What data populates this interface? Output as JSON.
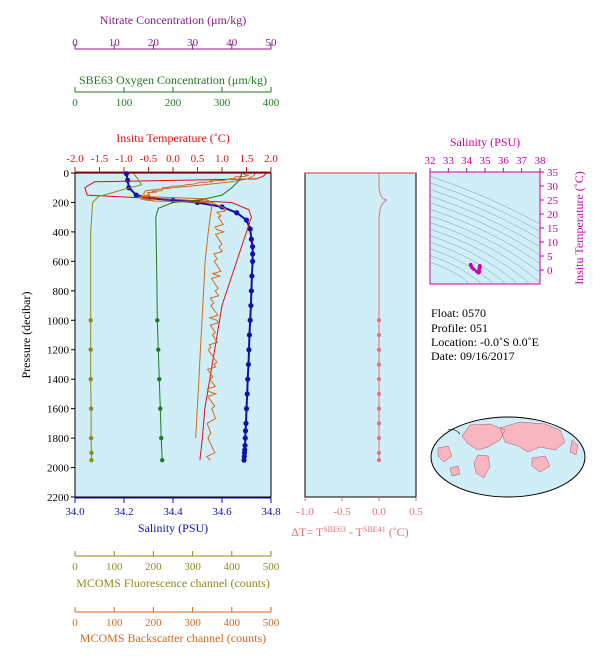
{
  "colors": {
    "nitrate": "#8b1a8b",
    "oxygen": "#1f7a1f",
    "temperature": "#dd1111",
    "salinity": "#1111aa",
    "fluorescence": "#8c8c1a",
    "backscatter": "#d2691e",
    "delta_t": "#e0707a",
    "ts": "#cc00aa",
    "plot_bg": "#cfeef8",
    "map_land": "#f7b6c0"
  },
  "texts": {
    "pressure_label": "Pressure (decibar)",
    "delta_t_label": "ΔT= T",
    "delta_t_sup1": "SBE63",
    "delta_t_mid": " - T",
    "delta_t_sup2": "SBE41",
    "delta_t_unit": " (˚C)"
  },
  "info": {
    "float": "Float:  0570",
    "profile": "Profile:  051",
    "location": "Location:  -0.0˚S   0.0˚E",
    "date": "Date:  09/16/2017"
  },
  "chart_data": [
    {
      "id": "profile",
      "type": "line",
      "ylabel": "Pressure (decibar)",
      "ylim": [
        2200,
        0
      ],
      "y_ticks": [
        0,
        200,
        400,
        600,
        800,
        1000,
        1200,
        1400,
        1600,
        1800,
        2000,
        2200
      ],
      "axes": {
        "nitrate": {
          "label": "Nitrate Concentration (μm/kg)",
          "lim": [
            0,
            50
          ],
          "ticks": [
            0,
            10,
            20,
            30,
            40,
            50
          ]
        },
        "oxygen": {
          "label": "SBE63 Oxygen Concentration (μm/kg)",
          "lim": [
            0,
            400
          ],
          "ticks": [
            0,
            100,
            200,
            300,
            400
          ]
        },
        "temperature": {
          "label": "Insitu Temperature (˚C)",
          "lim": [
            -2.0,
            2.0
          ],
          "ticks": [
            "-2.0",
            "-1.5",
            "-1.0",
            "-0.5",
            "0.0",
            "0.5",
            "1.0",
            "1.5",
            "2.0"
          ]
        },
        "salinity": {
          "label": "Salinity (PSU)",
          "lim": [
            34.0,
            34.8
          ],
          "ticks": [
            "34.0",
            "34.2",
            "34.4",
            "34.6",
            "34.8"
          ]
        },
        "fluorescence": {
          "label": "MCOMS Fluorescence channel (counts)",
          "lim": [
            0,
            500
          ],
          "ticks": [
            0,
            100,
            200,
            300,
            400,
            500
          ]
        },
        "backscatter": {
          "label": "MCOMS Backscatter channel (counts)",
          "lim": [
            0,
            500
          ],
          "ticks": [
            0,
            100,
            200,
            300,
            400,
            500
          ]
        }
      },
      "series": [
        {
          "key": "salinity",
          "style": "line+points",
          "x": [
            34.21,
            34.215,
            34.22,
            34.25,
            34.3,
            34.4,
            34.5,
            34.6,
            34.66,
            34.7,
            34.715,
            34.72,
            34.725,
            34.725,
            34.725,
            34.722,
            34.72,
            34.718,
            34.715,
            34.712,
            34.71,
            34.708,
            34.705,
            34.703,
            34.7,
            34.698,
            34.696,
            34.695,
            34.694,
            34.693,
            34.692,
            34.691,
            34.69
          ],
          "y": [
            5,
            50,
            100,
            150,
            170,
            185,
            200,
            230,
            270,
            320,
            380,
            450,
            500,
            550,
            600,
            700,
            800,
            900,
            1000,
            1100,
            1200,
            1300,
            1400,
            1500,
            1600,
            1700,
            1750,
            1800,
            1850,
            1880,
            1900,
            1925,
            1950
          ]
        },
        {
          "key": "temperature",
          "style": "line",
          "x": [
            1.9,
            1.85,
            1.7,
            0.0,
            -1.6,
            -1.8,
            -1.75,
            1.2,
            1.55,
            1.6,
            1.55,
            1.5,
            1.4,
            1.3,
            1.2,
            1.1,
            1.0,
            0.95,
            0.9,
            0.85,
            0.8,
            0.75,
            0.7,
            0.65,
            0.6,
            0.55
          ],
          "y": [
            5,
            20,
            40,
            50,
            60,
            100,
            150,
            200,
            250,
            300,
            350,
            400,
            500,
            600,
            700,
            800,
            900,
            1000,
            1100,
            1200,
            1300,
            1400,
            1500,
            1600,
            1800,
            1950
          ]
        },
        {
          "key": "backscatter",
          "style": "noisy",
          "x": [
            440,
            430,
            400,
            340,
            280,
            230,
            200,
            180,
            175,
            180,
            200,
            360,
            375,
            370,
            368,
            365,
            362,
            360,
            358,
            356,
            355,
            353,
            351,
            350,
            349,
            348,
            347,
            346,
            345
          ],
          "y": [
            5,
            20,
            40,
            60,
            80,
            100,
            130,
            150,
            170,
            180,
            190,
            200,
            250,
            300,
            400,
            500,
            600,
            700,
            800,
            900,
            1000,
            1100,
            1200,
            1300,
            1400,
            1500,
            1600,
            1800,
            1950
          ]
        },
        {
          "key": "backscatter",
          "style": "line",
          "x": [
            460,
            455,
            440,
            400,
            330,
            250,
            180,
            175,
            178,
            330,
            350,
            345,
            340,
            336,
            332,
            328,
            324,
            320,
            316,
            312,
            308
          ],
          "y": [
            5,
            20,
            40,
            60,
            80,
            100,
            120,
            140,
            160,
            175,
            200,
            300,
            400,
            500,
            600,
            800,
            1000,
            1200,
            1400,
            1600,
            1800
          ]
        },
        {
          "key": "oxygen",
          "style": "line+points",
          "x": [
            340,
            335,
            320,
            300,
            260,
            200,
            170,
            165,
            166,
            167,
            168,
            170,
            172,
            174,
            176,
            178
          ],
          "y": [
            5,
            50,
            100,
            150,
            180,
            200,
            240,
            300,
            500,
            700,
            1000,
            1200,
            1400,
            1600,
            1800,
            1950
          ]
        },
        {
          "key": "fluorescence",
          "style": "line+points",
          "x": [
            150,
            160,
            170,
            140,
            100,
            60,
            45,
            40,
            40,
            40,
            40,
            40,
            41,
            41,
            42,
            42
          ],
          "y": [
            5,
            40,
            80,
            100,
            130,
            160,
            200,
            400,
            700,
            1000,
            1200,
            1400,
            1600,
            1800,
            1900,
            1950
          ]
        }
      ]
    },
    {
      "id": "delta_t",
      "type": "line",
      "xlabel": "ΔT= TSBE63 - TSBE41 (˚C)",
      "xlim": [
        -1.0,
        0.5
      ],
      "x_ticks": [
        "-1.0",
        "-0.5",
        "0.0",
        "0.5"
      ],
      "ylim": [
        2200,
        0
      ],
      "series": [
        {
          "x": [
            0.0,
            0.0,
            0.02,
            0.05,
            0.1,
            0.06,
            0.02,
            0.0,
            0.0,
            0.0,
            0.0
          ],
          "y": [
            5,
            100,
            150,
            170,
            185,
            200,
            230,
            300,
            600,
            1000,
            1950
          ]
        }
      ]
    },
    {
      "id": "ts",
      "type": "scatter",
      "xlabel": "Salinity (PSU)",
      "ylabel": "Insitu Temperature (˚C)",
      "xlim": [
        32,
        38
      ],
      "ylim": [
        -5,
        35
      ],
      "x_ticks": [
        32,
        33,
        34,
        35,
        36,
        37,
        38
      ],
      "y_ticks": [
        0,
        5,
        10,
        15,
        20,
        25,
        30,
        35
      ],
      "series": [
        {
          "x": [
            34.22,
            34.24,
            34.3,
            34.4,
            34.55,
            34.65,
            34.7,
            34.72,
            34.72,
            34.72,
            34.71,
            34.7,
            34.69
          ],
          "y": [
            1.9,
            1.5,
            0.8,
            0.2,
            -0.5,
            -1.0,
            -0.6,
            0.8,
            1.4,
            1.5,
            1.2,
            0.8,
            0.5
          ]
        }
      ]
    }
  ]
}
